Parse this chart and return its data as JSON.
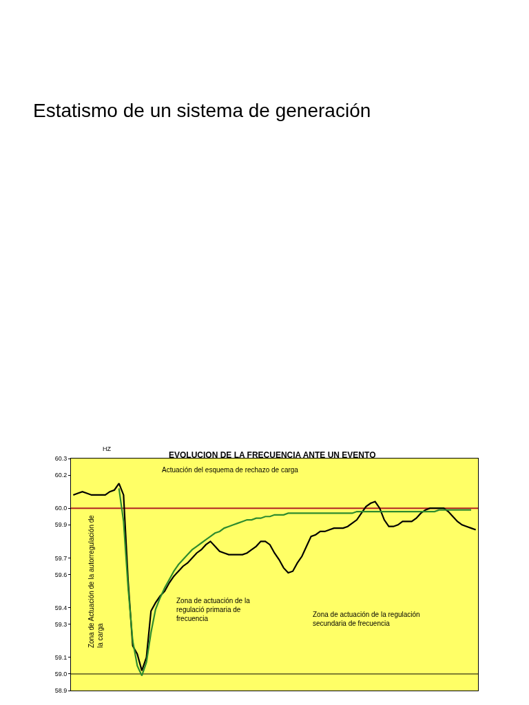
{
  "chart_data": {
    "type": "line",
    "title": "Estatismo de un sistema de generación",
    "subtitle": "EVOLUCION DE LA FRECUENCIA ANTE UN EVENTO",
    "ylabel": "HZ",
    "categories": [
      null,
      null,
      null,
      null,
      null,
      null,
      null,
      null,
      null,
      null,
      null,
      null,
      null,
      null,
      null,
      null,
      null,
      null,
      null,
      null,
      null,
      null,
      null,
      null,
      null,
      null,
      null,
      null,
      null,
      null,
      null,
      null,
      null,
      null,
      null,
      null,
      null,
      null,
      null,
      null,
      null,
      null,
      null,
      null,
      null,
      null,
      null,
      null,
      null,
      null,
      null,
      null,
      null,
      null,
      null,
      null,
      null,
      null,
      null,
      null,
      null,
      null,
      null,
      null,
      null,
      null,
      null,
      null,
      null,
      null,
      null,
      null,
      null,
      null,
      null,
      null,
      null,
      null,
      null,
      null,
      null,
      null,
      null,
      null,
      null,
      null,
      null,
      null,
      null
    ],
    "series": [
      {
        "color": "#000000",
        "values": [
          60.08,
          60.09,
          60.1,
          60.09,
          60.08,
          60.08,
          60.08,
          60.08,
          60.1,
          60.11,
          60.15,
          60.08,
          59.56,
          59.17,
          59.12,
          59.02,
          59.1,
          59.38,
          59.43,
          59.47,
          59.5,
          59.55,
          59.59,
          59.62,
          59.65,
          59.67,
          59.7,
          59.73,
          59.75,
          59.78,
          59.8,
          59.77,
          59.74,
          59.73,
          59.72,
          59.72,
          59.72,
          59.72,
          59.73,
          59.75,
          59.77,
          59.8,
          59.8,
          59.78,
          59.73,
          59.69,
          59.64,
          59.61,
          59.62,
          59.67,
          59.71,
          59.77,
          59.83,
          59.84,
          59.86,
          59.86,
          59.87,
          59.88,
          59.88,
          59.88,
          59.89,
          59.91,
          59.93,
          59.97,
          60.01,
          60.03,
          60.04,
          60.0,
          59.93,
          59.89,
          59.89,
          59.9,
          59.92,
          59.92,
          59.92,
          59.94,
          59.97,
          59.99,
          60.0,
          60.0,
          60.0,
          60.0,
          59.98,
          59.95,
          59.92,
          59.9,
          59.89,
          59.88,
          59.87
        ]
      },
      {
        "color": "#2e8b2e",
        "values": [
          null,
          null,
          null,
          null,
          null,
          null,
          null,
          null,
          null,
          null,
          60.12,
          59.92,
          59.52,
          59.2,
          59.05,
          58.99,
          59.07,
          59.25,
          59.39,
          59.46,
          59.52,
          59.57,
          59.62,
          59.66,
          59.69,
          59.72,
          59.75,
          59.77,
          59.79,
          59.81,
          59.83,
          59.85,
          59.86,
          59.88,
          59.89,
          59.9,
          59.91,
          59.92,
          59.93,
          59.93,
          59.94,
          59.94,
          59.95,
          59.95,
          59.96,
          59.96,
          59.96,
          59.97,
          59.97,
          59.97,
          59.97,
          59.97,
          59.97,
          59.97,
          59.97,
          59.97,
          59.97,
          59.97,
          59.97,
          59.97,
          59.97,
          59.97,
          59.98,
          59.98,
          59.98,
          59.98,
          59.98,
          59.98,
          59.98,
          59.98,
          59.98,
          59.98,
          59.98,
          59.98,
          59.98,
          59.98,
          59.98,
          59.98,
          59.98,
          59.98,
          59.99,
          59.99,
          59.99,
          59.99,
          59.99,
          59.99,
          59.99,
          59.99,
          null
        ]
      }
    ],
    "ylim": [
      58.9,
      60.3
    ],
    "yticks": [
      60.3,
      60.2,
      {
        "value": 60.0,
        "label": "60.0"
      },
      59.9,
      59.7,
      59.6,
      59.4,
      59.3,
      59.1,
      {
        "value": 59.0,
        "label": "59.0"
      },
      58.9
    ],
    "tick_labels": "y",
    "ref_lines": [
      {
        "axis": "y",
        "value": 60.0,
        "color": "#b22222"
      },
      {
        "axis": "y",
        "value": 59.0,
        "color": "#000000"
      }
    ],
    "annotations": [
      "Actuación del esquema de rechazo de carga",
      "Zona de Actuación de la autorregulación de\nla carga",
      "Zona de actuación de la\nregulació primaria de\nfrecuencia",
      "Zona de actuación de la regulación\nsecundaria de frecuencia"
    ],
    "grid": false,
    "marker": "none",
    "line_style": "solid"
  }
}
